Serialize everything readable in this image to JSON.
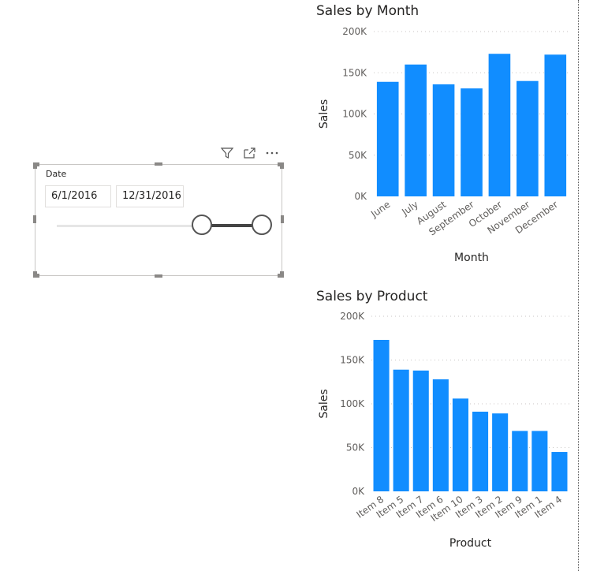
{
  "slicer": {
    "title": "Date",
    "start_date": "6/1/2016",
    "end_date": "12/31/2016",
    "range_start_fraction": 0.72,
    "range_end_fraction": 1.0
  },
  "toolbar": {
    "icons": [
      "filter-icon",
      "focus-mode-icon",
      "more-options-icon"
    ]
  },
  "charts": {
    "month": {
      "title": "Sales by Month"
    },
    "product": {
      "title": "Sales by Product"
    }
  },
  "colors": {
    "bar": "#118dff",
    "grid": "#c8c6c4",
    "axis_text": "#605e5c"
  },
  "chart_data": [
    {
      "type": "bar",
      "title": "Sales by Month",
      "xlabel": "Month",
      "ylabel": "Sales",
      "categories": [
        "June",
        "July",
        "August",
        "September",
        "October",
        "November",
        "December"
      ],
      "values": [
        139000,
        160000,
        136000,
        131000,
        173000,
        140000,
        172000
      ],
      "yticks": [
        "0K",
        "50K",
        "100K",
        "150K",
        "200K"
      ],
      "ylim": [
        0,
        200000
      ],
      "grid": true
    },
    {
      "type": "bar",
      "title": "Sales by Product",
      "xlabel": "Product",
      "ylabel": "Sales",
      "categories": [
        "Item 8",
        "Item 5",
        "Item 7",
        "Item 6",
        "Item 10",
        "Item 3",
        "Item 2",
        "Item 9",
        "Item 1",
        "Item 4"
      ],
      "values": [
        173000,
        139000,
        138000,
        128000,
        106000,
        91000,
        89000,
        69000,
        69000,
        45000
      ],
      "yticks": [
        "0K",
        "50K",
        "100K",
        "150K",
        "200K"
      ],
      "ylim": [
        0,
        200000
      ],
      "grid": true
    }
  ]
}
